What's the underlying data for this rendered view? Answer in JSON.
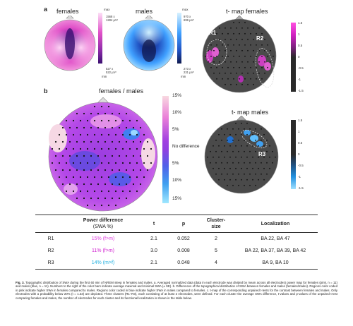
{
  "panels": {
    "a_label": "a",
    "b_label": "b",
    "a_female_title": "females",
    "a_male_title": "males",
    "tmap_female_title": "t- map females",
    "ratio_title": "females / males",
    "tmap_male_title": "t- map males"
  },
  "female_colorbar": {
    "max_label": "max",
    "min_label": "min",
    "max_val1": "1568 x",
    "max_val2": "1284 µV²",
    "min_val1": "527 x",
    "min_val2": "522 µV²"
  },
  "male_colorbar": {
    "max_label": "max",
    "min_label": "min",
    "max_val1": "970 x",
    "max_val2": "699 µV²",
    "min_val1": "273 x",
    "min_val2": "231 µV²"
  },
  "tmap_female_colorbar": {
    "ticks": [
      "1.5",
      "1",
      "0.5",
      "0",
      "-0.5",
      "-1",
      "-1.5"
    ]
  },
  "tmap_male_colorbar": {
    "ticks": [
      "1.5",
      "1",
      "0.5",
      "0",
      "-0.5",
      "-1",
      "-1.5"
    ]
  },
  "ratio_colorbar": {
    "ticks": [
      "15%",
      "10%",
      "5%",
      "No difference",
      "5%",
      "10%",
      "15%"
    ]
  },
  "cluster_labels": {
    "r1": "R1",
    "r2": "R2",
    "r3": "R3"
  },
  "table": {
    "headers": {
      "power_diff": "Power difference",
      "power_diff_unit": "(SWA %)",
      "t": "t",
      "p": "p",
      "cluster_size": "Cluster-",
      "cluster_size2": "size",
      "localization": "Localization"
    },
    "rows": [
      {
        "region": "R1",
        "diff": "15% (f>m)",
        "t": "2.1",
        "p": "0.052",
        "size": "2",
        "loc": "BA 22, BA 47"
      },
      {
        "region": "R2",
        "diff": "11% (f>m)",
        "t": "3.0",
        "p": "0.008",
        "size": "5",
        "loc": "BA 22, BA 37, BA 39, BA 42"
      },
      {
        "region": "R3",
        "diff": "14% (m>f)",
        "t": "2.1",
        "p": "0.048",
        "size": "4",
        "loc": "BA 9, BA 10"
      }
    ]
  },
  "caption": {
    "fig_label": "Fig. 3.",
    "text": "Topographic distribution of SWA during the first 60 min of NREM sleep in females and males. a. Averaged normalized data (data in each electrode was divided by mean across all electrodes) power map for females (pink, n = 11) and males (blue, n = 11). Numbers to the right of the color bars indicate average maximal and minimal SWA (± SE). b. Differences of the topographical distribution of SWA between females and males (females/males). Regions color coded in pink indicate higher SWA in females compared to males. Regions color coded in blue indicate higher SWA in males compared to females. c. t-map of the corresponding unpaired t-tests for the contrast between females and males. Only electrodes with a probability below 20% (t = 1.33) are depicted. Three clusters (R1–R3), each consisting of at least 2 electrodes, were defined. For each cluster the average SWA difference, t-values and p-values of the unpaired t-test comparing females and males, the number of electrodes for each cluster and its functional localization is shown in the table below."
  },
  "colors": {
    "female_pink": "#e040c0",
    "male_blue": "#2080ff",
    "tmap_gray": "#4a4a4a",
    "ratio_purple": "#a040e0",
    "row_r1": "#e040e0",
    "row_r2": "#d020d0",
    "row_r3": "#20b0e0"
  }
}
